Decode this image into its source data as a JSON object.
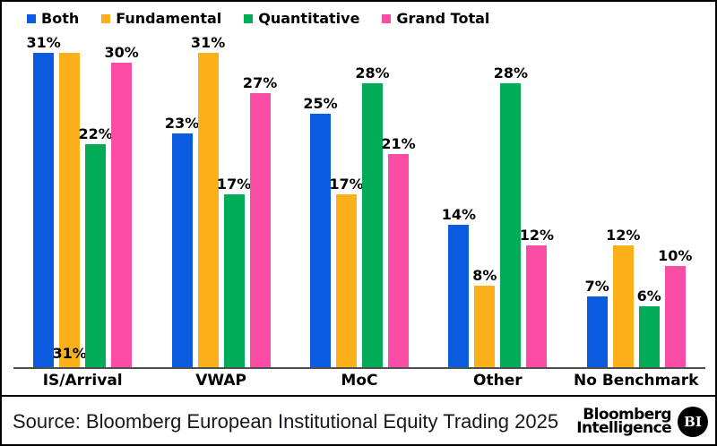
{
  "chart_data": {
    "type": "bar",
    "title": "",
    "unit": "%",
    "categories": [
      "IS/Arrival",
      "VWAP",
      "MoC",
      "Other",
      "No Benchmark"
    ],
    "series": [
      {
        "name": "Both",
        "color": "#0A5BE0",
        "values": [
          31,
          23,
          25,
          14,
          7
        ]
      },
      {
        "name": "Fundamental",
        "color": "#FBAF18",
        "values": [
          31,
          31,
          17,
          8,
          12
        ]
      },
      {
        "name": "Quantitative",
        "color": "#02AC56",
        "values": [
          22,
          17,
          28,
          28,
          6
        ]
      },
      {
        "name": "Grand Total",
        "color": "#FC4DA6",
        "values": [
          30,
          27,
          21,
          12,
          10
        ]
      }
    ],
    "ylim": [
      0,
      35
    ],
    "grid": false,
    "legend_position": "top-left",
    "data_labels": "above-bar",
    "label_overrides": [
      {
        "series": "Fundamental",
        "category": "IS/Arrival",
        "position": "inside-base"
      }
    ]
  },
  "footer": {
    "source_text": "Source: Bloomberg European Institutional Equity Trading 2025",
    "logo_line1": "Bloomberg",
    "logo_line2": "Intelligence",
    "logo_badge": "BI"
  }
}
